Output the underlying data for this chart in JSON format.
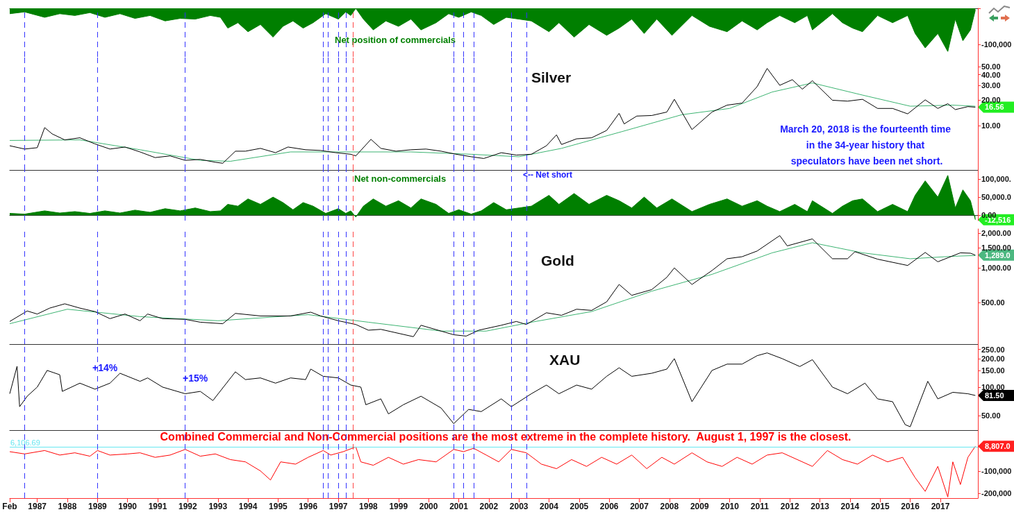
{
  "chart_data": [
    {
      "type": "area",
      "tick_labels": "y",
      "xlim": [
        "1986-02",
        "2018-04"
      ],
      "ylim": [
        -135000,
        0
      ],
      "yticks": [
        {
          "value": 0,
          "label": null
        },
        {
          "value": -100000,
          "label": "-100,000"
        }
      ],
      "annotations": [
        "Net position of commercials"
      ],
      "ref_lines": [
        {
          "axis": "x",
          "value": "1986-08",
          "label": null,
          "color": "#3333ff",
          "line_style": "dashed"
        },
        {
          "axis": "x",
          "value": "1989-01",
          "label": null,
          "color": "#3333ff",
          "line_style": "dashed"
        },
        {
          "axis": "x",
          "value": "1991-12",
          "label": null,
          "color": "#3333ff",
          "line_style": "dashed"
        },
        {
          "axis": "x",
          "value": "1996-07",
          "label": null,
          "color": "#3333ff",
          "line_style": "dashed"
        },
        {
          "axis": "x",
          "value": "1996-09",
          "label": null,
          "color": "#3333ff",
          "line_style": "dashed"
        },
        {
          "axis": "x",
          "value": "1997-01",
          "label": null,
          "color": "#3333ff",
          "line_style": "dashed"
        },
        {
          "axis": "x",
          "value": "1997-04",
          "label": null,
          "color": "#3333ff",
          "line_style": "dashed"
        },
        {
          "axis": "x",
          "value": "1997-07",
          "label": null,
          "color": "#ff4444",
          "line_style": "dashed"
        },
        {
          "axis": "x",
          "value": "2000-11",
          "label": null,
          "color": "#3333ff",
          "line_style": "dashed"
        },
        {
          "axis": "x",
          "value": "2001-03",
          "label": null,
          "color": "#3333ff",
          "line_style": "dashed"
        },
        {
          "axis": "x",
          "value": "2001-07",
          "label": null,
          "color": "#3333ff",
          "line_style": "dashed"
        },
        {
          "axis": "x",
          "value": "2002-10",
          "label": null,
          "color": "#3333ff",
          "line_style": "dashed"
        },
        {
          "axis": "x",
          "value": "2003-04",
          "label": null,
          "color": "#3333ff",
          "line_style": "dashed"
        }
      ],
      "series": [
        {
          "color": "#007f00",
          "x": [
            "1986-02",
            "1986-08",
            "1987-04",
            "1987-10",
            "1988-04",
            "1988-10",
            "1989-04",
            "1989-10",
            "1990-04",
            "1990-10",
            "1991-04",
            "1991-10",
            "1992-04",
            "1992-10",
            "1993-02",
            "1993-05",
            "1993-09",
            "1994-01",
            "1994-06",
            "1994-11",
            "1995-03",
            "1995-07",
            "1995-11",
            "1996-03",
            "1996-08",
            "1997-01",
            "1997-04",
            "1997-06",
            "1997-08",
            "1997-11",
            "1998-03",
            "1998-08",
            "1999-01",
            "1999-06",
            "1999-10",
            "2000-04",
            "2000-09",
            "2001-01",
            "2001-06",
            "2001-10",
            "2002-03",
            "2002-08",
            "2003-01",
            "2003-06",
            "2004-01",
            "2004-05",
            "2004-11",
            "2005-05",
            "2005-12",
            "2006-05",
            "2006-10",
            "2007-03",
            "2007-08",
            "2008-02",
            "2008-10",
            "2009-05",
            "2009-12",
            "2010-06",
            "2010-12",
            "2011-04",
            "2011-09",
            "2012-03",
            "2012-08",
            "2012-10",
            "2013-06",
            "2013-10",
            "2014-02",
            "2014-06",
            "2014-12",
            "2015-06",
            "2015-12",
            "2016-03",
            "2016-07",
            "2016-12",
            "2017-04",
            "2017-07",
            "2017-10",
            "2018-01",
            "2018-03"
          ],
          "values": [
            -15000,
            -10000,
            -25000,
            -15000,
            -20000,
            -12000,
            -25000,
            -15000,
            -28000,
            -20000,
            -35000,
            -28000,
            -30000,
            -20000,
            -25000,
            -55000,
            -40000,
            -65000,
            -45000,
            -80000,
            -50000,
            -35000,
            -55000,
            -40000,
            -15000,
            -30000,
            -10000,
            -20000,
            0,
            -30000,
            -60000,
            -35000,
            -50000,
            -30000,
            -60000,
            -40000,
            -15000,
            -25000,
            -10000,
            -20000,
            -45000,
            -25000,
            -30000,
            -35000,
            -65000,
            -40000,
            -80000,
            -45000,
            -75000,
            -55000,
            -30000,
            -70000,
            -30000,
            -75000,
            -20000,
            -50000,
            -65000,
            -35000,
            -60000,
            -40000,
            -20000,
            -40000,
            -20000,
            -60000,
            -15000,
            -40000,
            -55000,
            -65000,
            -20000,
            -40000,
            -20000,
            -70000,
            -110000,
            -70000,
            -120000,
            -30000,
            -90000,
            -60000,
            -5000
          ]
        }
      ]
    },
    {
      "type": "line",
      "title": "Silver",
      "log": true,
      "tick_labels": "y",
      "xlim": [
        "1986-02",
        "2018-04"
      ],
      "ylim": [
        3,
        65
      ],
      "yticks": [
        {
          "value": 10,
          "label": "10.00"
        },
        {
          "value": 20,
          "label": "20.00"
        },
        {
          "value": 30,
          "label": "30.00"
        },
        {
          "value": 40,
          "label": "40.00"
        },
        {
          "value": 50,
          "label": "50.00"
        }
      ],
      "annotations": [
        "March 20, 2018 is the fourteenth time in the 34-year history that speculators have been net short.",
        {
          "text": "16.56",
          "x": "2018-03",
          "y": 16.56
        }
      ],
      "ref_lines": [
        {
          "axis": "x",
          "value": "1986-08",
          "label": null,
          "color": "#3333ff",
          "line_style": "dashed"
        },
        {
          "axis": "x",
          "value": "1989-01",
          "label": null,
          "color": "#3333ff",
          "line_style": "dashed"
        },
        {
          "axis": "x",
          "value": "1991-12",
          "label": null,
          "color": "#3333ff",
          "line_style": "dashed"
        },
        {
          "axis": "x",
          "value": "1996-07",
          "label": null,
          "color": "#3333ff",
          "line_style": "dashed"
        },
        {
          "axis": "x",
          "value": "1996-09",
          "label": null,
          "color": "#3333ff",
          "line_style": "dashed"
        },
        {
          "axis": "x",
          "value": "1997-01",
          "label": null,
          "color": "#3333ff",
          "line_style": "dashed"
        },
        {
          "axis": "x",
          "value": "1997-04",
          "label": null,
          "color": "#3333ff",
          "line_style": "dashed"
        },
        {
          "axis": "x",
          "value": "1997-07",
          "label": null,
          "color": "#ff4444",
          "line_style": "dashed"
        },
        {
          "axis": "x",
          "value": "2000-11",
          "label": null,
          "color": "#3333ff",
          "line_style": "dashed"
        },
        {
          "axis": "x",
          "value": "2001-03",
          "label": null,
          "color": "#3333ff",
          "line_style": "dashed"
        },
        {
          "axis": "x",
          "value": "2001-07",
          "label": null,
          "color": "#3333ff",
          "line_style": "dashed"
        },
        {
          "axis": "x",
          "value": "2002-10",
          "label": null,
          "color": "#3333ff",
          "line_style": "dashed"
        },
        {
          "axis": "x",
          "value": "2003-04",
          "label": null,
          "color": "#3333ff",
          "line_style": "dashed"
        }
      ],
      "series": [
        {
          "color": "#3cb371",
          "x": [
            "1986-02",
            "1988-06",
            "1990-06",
            "1992-06",
            "1993-06",
            "1995-06",
            "1997-06",
            "1999-06",
            "2001-06",
            "2003-01",
            "2004-06",
            "2006-06",
            "2008-06",
            "2010-01",
            "2011-06",
            "2012-10",
            "2014-06",
            "2016-01",
            "2017-06",
            "2018-03"
          ],
          "values": [
            6.7,
            6.8,
            5.2,
            3.9,
            3.8,
            4.9,
            4.9,
            4.9,
            4.6,
            4.3,
            5.4,
            8.5,
            13.5,
            16,
            25,
            32,
            23,
            17,
            17.5,
            17
          ]
        },
        {
          "color": "#000000",
          "x": [
            "1986-02",
            "1986-08",
            "1987-01",
            "1987-04",
            "1987-07",
            "1987-12",
            "1988-06",
            "1988-12",
            "1989-06",
            "1989-12",
            "1990-06",
            "1990-12",
            "1991-06",
            "1991-12",
            "1992-06",
            "1992-12",
            "1993-03",
            "1993-08",
            "1993-12",
            "1994-06",
            "1994-12",
            "1995-05",
            "1995-12",
            "1996-06",
            "1996-12",
            "1997-06",
            "1997-08",
            "1998-02",
            "1998-06",
            "1998-12",
            "1999-06",
            "1999-12",
            "2000-06",
            "2000-12",
            "2001-06",
            "2001-11",
            "2002-06",
            "2002-12",
            "2003-06",
            "2003-12",
            "2004-04",
            "2004-06",
            "2004-12",
            "2005-06",
            "2005-12",
            "2006-05",
            "2006-07",
            "2006-12",
            "2007-06",
            "2007-12",
            "2008-03",
            "2008-10",
            "2009-06",
            "2009-12",
            "2010-06",
            "2010-12",
            "2011-04",
            "2011-09",
            "2012-02",
            "2012-06",
            "2012-10",
            "2013-06",
            "2013-12",
            "2014-06",
            "2014-12",
            "2015-06",
            "2015-12",
            "2016-07",
            "2016-12",
            "2017-04",
            "2017-07",
            "2017-12",
            "2018-03"
          ],
          "values": [
            5.8,
            5.3,
            5.5,
            9.5,
            8.0,
            6.8,
            7.2,
            6.1,
            5.3,
            5.6,
            4.9,
            4.2,
            4.4,
            3.9,
            4.0,
            3.7,
            3.6,
            5.0,
            5.0,
            5.4,
            4.8,
            5.6,
            5.2,
            5.1,
            4.8,
            4.6,
            4.4,
            6.9,
            5.4,
            5.0,
            5.2,
            5.3,
            5.0,
            4.6,
            4.3,
            4.1,
            4.8,
            4.5,
            4.6,
            5.8,
            7.8,
            6.0,
            7.0,
            7.2,
            8.8,
            14.0,
            10.5,
            13.0,
            13.2,
            14.5,
            20.5,
            9.0,
            14.5,
            17.5,
            18.5,
            29.0,
            47.5,
            30.0,
            35.0,
            27.0,
            34.0,
            20.0,
            19.5,
            20.5,
            16.0,
            16.0,
            13.8,
            20.2,
            16.0,
            18.2,
            15.5,
            16.8,
            16.56
          ]
        }
      ]
    },
    {
      "type": "area",
      "tick_labels": "y",
      "xlim": [
        "1986-02",
        "2018-04"
      ],
      "ylim": [
        -15000,
        125000
      ],
      "yticks": [
        {
          "value": 0,
          "label": "0.00"
        },
        {
          "value": 50000,
          "label": "50,000.0"
        },
        {
          "value": 100000,
          "label": "100,000."
        }
      ],
      "annotations": [
        "Net non-commercials",
        "<-- Net short",
        {
          "text": "-12,516",
          "x": "2018-03",
          "y": -12516
        }
      ],
      "ref_lines": [
        {
          "axis": "x",
          "value": "1986-08",
          "label": null,
          "color": "#3333ff",
          "line_style": "dashed"
        },
        {
          "axis": "x",
          "value": "1989-01",
          "label": null,
          "color": "#3333ff",
          "line_style": "dashed"
        },
        {
          "axis": "x",
          "value": "1991-12",
          "label": null,
          "color": "#3333ff",
          "line_style": "dashed"
        },
        {
          "axis": "x",
          "value": "1996-07",
          "label": null,
          "color": "#3333ff",
          "line_style": "dashed"
        },
        {
          "axis": "x",
          "value": "1996-09",
          "label": null,
          "color": "#3333ff",
          "line_style": "dashed"
        },
        {
          "axis": "x",
          "value": "1997-01",
          "label": null,
          "color": "#3333ff",
          "line_style": "dashed"
        },
        {
          "axis": "x",
          "value": "1997-04",
          "label": null,
          "color": "#3333ff",
          "line_style": "dashed"
        },
        {
          "axis": "x",
          "value": "1997-07",
          "label": null,
          "color": "#ff4444",
          "line_style": "dashed"
        },
        {
          "axis": "x",
          "value": "2000-11",
          "label": null,
          "color": "#3333ff",
          "line_style": "dashed"
        },
        {
          "axis": "x",
          "value": "2001-03",
          "label": null,
          "color": "#3333ff",
          "line_style": "dashed"
        },
        {
          "axis": "x",
          "value": "2001-07",
          "label": null,
          "color": "#3333ff",
          "line_style": "dashed"
        },
        {
          "axis": "x",
          "value": "2002-10",
          "label": null,
          "color": "#3333ff",
          "line_style": "dashed"
        },
        {
          "axis": "x",
          "value": "2003-04",
          "label": null,
          "color": "#3333ff",
          "line_style": "dashed"
        }
      ],
      "series": [
        {
          "color": "#007f00",
          "x": [
            "1986-02",
            "1986-08",
            "1987-04",
            "1987-10",
            "1988-04",
            "1988-10",
            "1989-04",
            "1989-10",
            "1990-04",
            "1990-10",
            "1991-04",
            "1991-10",
            "1992-04",
            "1992-10",
            "1993-02",
            "1993-05",
            "1993-09",
            "1994-01",
            "1994-06",
            "1994-11",
            "1995-03",
            "1995-07",
            "1995-11",
            "1996-03",
            "1996-08",
            "1997-01",
            "1997-04",
            "1997-06",
            "1997-08",
            "1997-11",
            "1998-03",
            "1998-08",
            "1999-01",
            "1999-06",
            "1999-10",
            "2000-04",
            "2000-09",
            "2001-01",
            "2001-06",
            "2001-10",
            "2002-03",
            "2002-08",
            "2003-01",
            "2003-06",
            "2004-01",
            "2004-05",
            "2004-11",
            "2005-05",
            "2005-12",
            "2006-05",
            "2006-10",
            "2007-03",
            "2007-08",
            "2008-02",
            "2008-10",
            "2009-05",
            "2009-12",
            "2010-06",
            "2010-12",
            "2011-04",
            "2011-09",
            "2012-03",
            "2012-08",
            "2012-10",
            "2013-06",
            "2013-10",
            "2014-02",
            "2014-06",
            "2014-12",
            "2015-06",
            "2015-12",
            "2016-03",
            "2016-07",
            "2016-12",
            "2017-04",
            "2017-07",
            "2017-10",
            "2018-01",
            "2018-03"
          ],
          "values": [
            5000,
            3000,
            12000,
            6000,
            10000,
            5000,
            12000,
            6000,
            14000,
            8000,
            18000,
            12000,
            20000,
            10000,
            12000,
            30000,
            25000,
            45000,
            30000,
            50000,
            35000,
            15000,
            35000,
            25000,
            5000,
            18000,
            5000,
            12000,
            -5000,
            25000,
            45000,
            25000,
            40000,
            20000,
            45000,
            30000,
            5000,
            15000,
            3000,
            12000,
            35000,
            15000,
            20000,
            25000,
            55000,
            30000,
            60000,
            30000,
            55000,
            40000,
            20000,
            50000,
            20000,
            45000,
            10000,
            30000,
            45000,
            25000,
            40000,
            25000,
            10000,
            30000,
            10000,
            40000,
            5000,
            25000,
            40000,
            45000,
            10000,
            30000,
            10000,
            55000,
            95000,
            50000,
            110000,
            20000,
            70000,
            40000,
            -12516
          ]
        }
      ]
    },
    {
      "type": "line",
      "title": "Gold",
      "log": true,
      "tick_labels": "y",
      "xlim": [
        "1986-02",
        "2018-04"
      ],
      "ylim": [
        220,
        2170
      ],
      "yticks": [
        {
          "value": 500,
          "label": "500.00"
        },
        {
          "value": 1000,
          "label": "1,000.00"
        },
        {
          "value": 1500,
          "label": "1,500.00"
        },
        {
          "value": 2000,
          "label": "2,000.00"
        }
      ],
      "annotations": [
        {
          "text": "1,289.0",
          "x": "2018-03",
          "y": 1289
        }
      ],
      "ref_lines": [
        {
          "axis": "x",
          "value": "1986-08",
          "label": null,
          "color": "#3333ff",
          "line_style": "dashed"
        },
        {
          "axis": "x",
          "value": "1989-01",
          "label": null,
          "color": "#3333ff",
          "line_style": "dashed"
        },
        {
          "axis": "x",
          "value": "1991-12",
          "label": null,
          "color": "#3333ff",
          "line_style": "dashed"
        },
        {
          "axis": "x",
          "value": "1996-07",
          "label": null,
          "color": "#3333ff",
          "line_style": "dashed"
        },
        {
          "axis": "x",
          "value": "1996-09",
          "label": null,
          "color": "#3333ff",
          "line_style": "dashed"
        },
        {
          "axis": "x",
          "value": "1997-01",
          "label": null,
          "color": "#3333ff",
          "line_style": "dashed"
        },
        {
          "axis": "x",
          "value": "1997-04",
          "label": null,
          "color": "#3333ff",
          "line_style": "dashed"
        },
        {
          "axis": "x",
          "value": "1997-07",
          "label": null,
          "color": "#ff4444",
          "line_style": "dashed"
        },
        {
          "axis": "x",
          "value": "2000-11",
          "label": null,
          "color": "#3333ff",
          "line_style": "dashed"
        },
        {
          "axis": "x",
          "value": "2001-03",
          "label": null,
          "color": "#3333ff",
          "line_style": "dashed"
        },
        {
          "axis": "x",
          "value": "2001-07",
          "label": null,
          "color": "#3333ff",
          "line_style": "dashed"
        },
        {
          "axis": "x",
          "value": "2002-10",
          "label": null,
          "color": "#3333ff",
          "line_style": "dashed"
        },
        {
          "axis": "x",
          "value": "2003-04",
          "label": null,
          "color": "#3333ff",
          "line_style": "dashed"
        }
      ],
      "series": [
        {
          "color": "#3cb371",
          "x": [
            "1986-02",
            "1988-01",
            "1990-06",
            "1993-01",
            "1996-01",
            "1998-01",
            "2000-06",
            "2001-12",
            "2003-06",
            "2005-06",
            "2007-06",
            "2009-06",
            "2011-06",
            "2012-10",
            "2014-06",
            "2016-01",
            "2017-06",
            "2018-03"
          ],
          "values": [
            330,
            440,
            380,
            350,
            395,
            340,
            285,
            285,
            340,
            420,
            630,
            880,
            1350,
            1650,
            1350,
            1200,
            1260,
            1280
          ]
        },
        {
          "color": "#000000",
          "x": [
            "1986-02",
            "1986-09",
            "1987-01",
            "1987-06",
            "1987-12",
            "1988-06",
            "1988-12",
            "1989-06",
            "1989-12",
            "1990-06",
            "1990-09",
            "1991-03",
            "1991-12",
            "1992-06",
            "1993-03",
            "1993-08",
            "1994-06",
            "1995-06",
            "1996-02",
            "1996-06",
            "1997-01",
            "1997-08",
            "1998-01",
            "1998-06",
            "1999-07",
            "1999-10",
            "2000-06",
            "2000-11",
            "2001-04",
            "2001-09",
            "2002-06",
            "2002-12",
            "2003-04",
            "2003-12",
            "2004-06",
            "2004-12",
            "2005-06",
            "2005-12",
            "2006-05",
            "2006-10",
            "2007-06",
            "2007-12",
            "2008-03",
            "2008-10",
            "2009-06",
            "2009-12",
            "2010-06",
            "2010-12",
            "2011-09",
            "2011-12",
            "2012-10",
            "2013-06",
            "2013-12",
            "2014-03",
            "2014-12",
            "2015-12",
            "2016-07",
            "2016-12",
            "2017-09",
            "2018-01",
            "2018-03"
          ],
          "values": [
            345,
            425,
            400,
            450,
            490,
            450,
            420,
            365,
            400,
            350,
            400,
            365,
            360,
            340,
            330,
            405,
            385,
            385,
            415,
            385,
            350,
            325,
            290,
            295,
            255,
            320,
            285,
            265,
            258,
            290,
            320,
            345,
            325,
            410,
            390,
            440,
            430,
            510,
            720,
            580,
            650,
            830,
            1000,
            720,
            950,
            1200,
            1250,
            1400,
            1900,
            1550,
            1780,
            1200,
            1200,
            1380,
            1190,
            1050,
            1360,
            1130,
            1350,
            1340,
            1289
          ]
        }
      ]
    },
    {
      "type": "line",
      "title": "XAU",
      "log": true,
      "tick_labels": "y",
      "xlim": [
        "1986-02",
        "2018-04"
      ],
      "ylim": [
        35,
        285
      ],
      "yticks": [
        {
          "value": 50,
          "label": "50.00"
        },
        {
          "value": 100,
          "label": "100.00"
        },
        {
          "value": 150,
          "label": "150.00"
        },
        {
          "value": 200,
          "label": "200.00"
        },
        {
          "value": 250,
          "label": "250.00"
        }
      ],
      "annotations": [
        "+14%",
        "+15%",
        {
          "text": "81.50",
          "x": "2018-03",
          "y": 81.5
        }
      ],
      "ref_lines": [
        {
          "axis": "x",
          "value": "1986-08",
          "label": null,
          "color": "#3333ff",
          "line_style": "dashed"
        },
        {
          "axis": "x",
          "value": "1989-01",
          "label": null,
          "color": "#3333ff",
          "line_style": "dashed"
        },
        {
          "axis": "x",
          "value": "1991-12",
          "label": null,
          "color": "#3333ff",
          "line_style": "dashed"
        },
        {
          "axis": "x",
          "value": "1996-07",
          "label": null,
          "color": "#3333ff",
          "line_style": "dashed"
        },
        {
          "axis": "x",
          "value": "1996-09",
          "label": null,
          "color": "#3333ff",
          "line_style": "dashed"
        },
        {
          "axis": "x",
          "value": "1997-01",
          "label": null,
          "color": "#3333ff",
          "line_style": "dashed"
        },
        {
          "axis": "x",
          "value": "1997-04",
          "label": null,
          "color": "#3333ff",
          "line_style": "dashed"
        },
        {
          "axis": "x",
          "value": "1997-07",
          "label": null,
          "color": "#ff4444",
          "line_style": "dashed"
        },
        {
          "axis": "x",
          "value": "2000-11",
          "label": null,
          "color": "#3333ff",
          "line_style": "dashed"
        },
        {
          "axis": "x",
          "value": "2001-03",
          "label": null,
          "color": "#3333ff",
          "line_style": "dashed"
        },
        {
          "axis": "x",
          "value": "2001-07",
          "label": null,
          "color": "#3333ff",
          "line_style": "dashed"
        },
        {
          "axis": "x",
          "value": "2002-10",
          "label": null,
          "color": "#3333ff",
          "line_style": "dashed"
        },
        {
          "axis": "x",
          "value": "2003-04",
          "label": null,
          "color": "#3333ff",
          "line_style": "dashed"
        }
      ],
      "series": [
        {
          "color": "#000000",
          "x": [
            "1986-02",
            "1986-05",
            "1986-06",
            "1986-09",
            "1987-01",
            "1987-05",
            "1987-10",
            "1987-11",
            "1988-06",
            "1988-12",
            "1989-06",
            "1989-10",
            "1990-06",
            "1990-09",
            "1991-03",
            "1991-12",
            "1992-06",
            "1992-11",
            "1993-08",
            "1993-12",
            "1994-06",
            "1994-12",
            "1995-06",
            "1995-12",
            "1996-02",
            "1996-07",
            "1997-01",
            "1997-06",
            "1997-10",
            "1997-12",
            "1998-06",
            "1998-09",
            "1999-03",
            "1999-10",
            "2000-06",
            "2000-11",
            "2001-05",
            "2001-10",
            "2002-06",
            "2002-10",
            "2003-06",
            "2003-12",
            "2004-05",
            "2004-12",
            "2005-06",
            "2005-12",
            "2006-05",
            "2006-10",
            "2007-06",
            "2007-12",
            "2008-03",
            "2008-10",
            "2009-06",
            "2009-12",
            "2010-06",
            "2010-12",
            "2011-04",
            "2011-10",
            "2012-05",
            "2012-10",
            "2013-06",
            "2013-12",
            "2014-07",
            "2014-12",
            "2015-06",
            "2015-11",
            "2016-01",
            "2016-08",
            "2016-12",
            "2017-06",
            "2017-12",
            "2018-03"
          ],
          "values": [
            85,
            166,
            62,
            80,
            100,
            150,
            135,
            90,
            110,
            95,
            110,
            140,
            115,
            125,
            100,
            85,
            90,
            72,
            145,
            120,
            125,
            110,
            125,
            120,
            155,
            130,
            125,
            105,
            100,
            65,
            75,
            52,
            65,
            80,
            60,
            41,
            58,
            55,
            75,
            62,
            85,
            105,
            85,
            105,
            95,
            130,
            160,
            130,
            140,
            155,
            200,
            70,
            150,
            175,
            175,
            215,
            230,
            200,
            165,
            195,
            100,
            85,
            110,
            75,
            70,
            40,
            38,
            115,
            75,
            88,
            85,
            81.5
          ]
        }
      ]
    },
    {
      "type": "line",
      "xlim": [
        "1986-02",
        "2018-04"
      ],
      "ylim": [
        -220000,
        80000
      ],
      "yticks": [
        {
          "value": -100000,
          "label": "-100,000"
        },
        {
          "value": -200000,
          "label": "-200,000"
        }
      ],
      "xticks": [
        {
          "value": "1986-02",
          "label": "Feb"
        },
        "1987",
        "1988",
        "1989",
        "1990",
        "1991",
        "1992",
        "1993",
        "1994",
        "1995",
        "1996",
        "1997",
        "1998",
        "1999",
        "2000",
        "2001",
        "2002",
        "2003",
        "2004",
        "2005",
        "2006",
        "2007",
        "2008",
        "2009",
        "2010",
        "2011",
        "2012",
        "2013",
        "2014",
        "2015",
        "2016",
        "2017"
      ],
      "annotations": [
        "Combined Commercial and Non-Commercial positions are the most extreme in the complete history.  August 1, 1997 is the closest.",
        {
          "text": "8,807.0",
          "x": "2018-03",
          "y": 8807
        }
      ],
      "ref_lines": [
        {
          "axis": "y",
          "value": 6106.69,
          "label": "6,106.69",
          "color": "#66e6f0",
          "line_style": "solid"
        },
        {
          "axis": "x",
          "value": "1986-08",
          "label": null,
          "color": "#3333ff",
          "line_style": "dashed"
        },
        {
          "axis": "x",
          "value": "1989-01",
          "label": null,
          "color": "#3333ff",
          "line_style": "dashed"
        },
        {
          "axis": "x",
          "value": "1991-12",
          "label": null,
          "color": "#3333ff",
          "line_style": "dashed"
        },
        {
          "axis": "x",
          "value": "1996-07",
          "label": null,
          "color": "#3333ff",
          "line_style": "dashed"
        },
        {
          "axis": "x",
          "value": "1996-09",
          "label": null,
          "color": "#3333ff",
          "line_style": "dashed"
        },
        {
          "axis": "x",
          "value": "1997-01",
          "label": null,
          "color": "#3333ff",
          "line_style": "dashed"
        },
        {
          "axis": "x",
          "value": "1997-04",
          "label": null,
          "color": "#3333ff",
          "line_style": "dashed"
        },
        {
          "axis": "x",
          "value": "1997-07",
          "label": null,
          "color": "#ff4444",
          "line_style": "dashed"
        },
        {
          "axis": "x",
          "value": "2000-11",
          "label": null,
          "color": "#3333ff",
          "line_style": "dashed"
        },
        {
          "axis": "x",
          "value": "2001-03",
          "label": null,
          "color": "#3333ff",
          "line_style": "dashed"
        },
        {
          "axis": "x",
          "value": "2001-07",
          "label": null,
          "color": "#3333ff",
          "line_style": "dashed"
        },
        {
          "axis": "x",
          "value": "2002-10",
          "label": null,
          "color": "#3333ff",
          "line_style": "dashed"
        },
        {
          "axis": "x",
          "value": "2003-04",
          "label": null,
          "color": "#3333ff",
          "line_style": "dashed"
        }
      ],
      "series": [
        {
          "color": "#ff0000",
          "x": [
            "1986-02",
            "1986-08",
            "1987-04",
            "1987-10",
            "1988-04",
            "1988-10",
            "1989-01",
            "1989-06",
            "1990-01",
            "1990-06",
            "1990-12",
            "1991-06",
            "1991-12",
            "1992-06",
            "1992-12",
            "1993-06",
            "1993-12",
            "1994-06",
            "1994-10",
            "1995-02",
            "1995-08",
            "1996-01",
            "1996-07",
            "1996-10",
            "1997-03",
            "1997-08",
            "1997-10",
            "1998-03",
            "1998-09",
            "1999-03",
            "1999-09",
            "2000-04",
            "2000-11",
            "2001-03",
            "2001-07",
            "2001-12",
            "2002-05",
            "2002-10",
            "2003-04",
            "2003-10",
            "2004-04",
            "2004-10",
            "2005-04",
            "2005-10",
            "2006-04",
            "2006-10",
            "2007-04",
            "2007-10",
            "2008-03",
            "2008-10",
            "2009-04",
            "2009-10",
            "2010-04",
            "2010-10",
            "2011-04",
            "2011-10",
            "2012-04",
            "2012-10",
            "2013-04",
            "2013-10",
            "2014-04",
            "2014-10",
            "2015-04",
            "2015-10",
            "2016-03",
            "2016-07",
            "2016-12",
            "2017-04",
            "2017-06",
            "2017-09",
            "2017-12",
            "2018-03"
          ],
          "values": [
            -15000,
            -25000,
            -10000,
            -30000,
            -20000,
            -35000,
            -10000,
            -30000,
            -25000,
            -20000,
            -40000,
            -30000,
            -5000,
            -35000,
            -25000,
            -50000,
            -60000,
            -100000,
            -140000,
            -60000,
            -70000,
            -40000,
            -10000,
            -30000,
            -15000,
            6000,
            -60000,
            -75000,
            -40000,
            -70000,
            -50000,
            -60000,
            -5000,
            -15000,
            0,
            -30000,
            -60000,
            -5000,
            -20000,
            -70000,
            -90000,
            -50000,
            -80000,
            -40000,
            -70000,
            -30000,
            -90000,
            -40000,
            -70000,
            -20000,
            -60000,
            -80000,
            -40000,
            -70000,
            -30000,
            -20000,
            -50000,
            -80000,
            -10000,
            -50000,
            -70000,
            -30000,
            -60000,
            -40000,
            -130000,
            -190000,
            -80000,
            -215000,
            -60000,
            -160000,
            -40000,
            8807
          ]
        }
      ]
    }
  ]
}
